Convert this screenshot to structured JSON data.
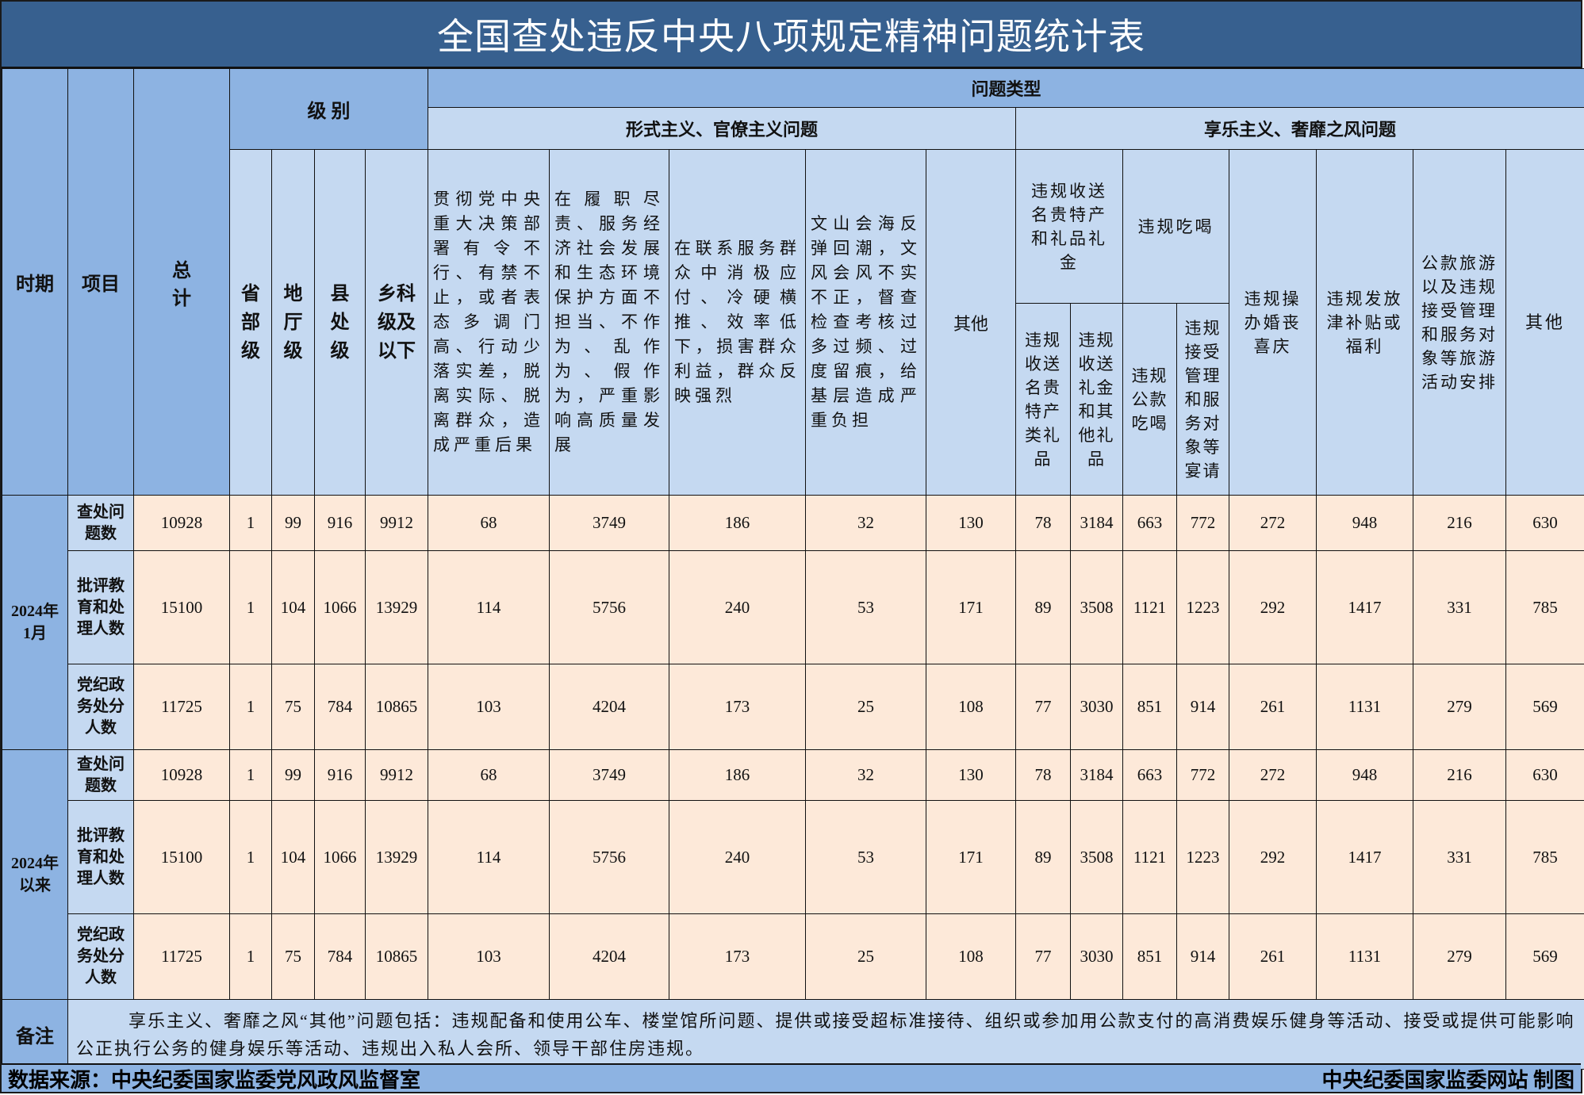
{
  "title": "全国查处违反中央八项规定精神问题统计表",
  "header": {
    "period": "时期",
    "item": "项目",
    "total": "总计",
    "level": "级 别",
    "levels": [
      "省部级",
      "地厅级",
      "县处级",
      "乡科级及以下"
    ],
    "problem_type": "问题类型",
    "formalism": "形式主义、官僚主义问题",
    "hedonism": "享乐主义、奢靡之风问题",
    "formalism_cols": [
      "贯彻党中央重大决策部署有令不行、有禁不止，或者表态多调门高、行动少落实差，脱离实际、脱离群众，造成严重后果",
      "在履职尽责、服务经济社会发展和生态环境保护方面不担当、不作为、乱作为、假作为，严重影响高质量发展",
      "在联系服务群众中消极应付、冷硬横推、效率低下，损害群众利益，群众反映强烈",
      "文山会海反弹回潮，文风会风不实不正，督查检查考核过多过频、过度留痕，给基层造成严重负担",
      "其他"
    ],
    "gifts_group": "违规收送名贵特产和礼品礼金",
    "gifts_cols": [
      "违规收送名贵特产类礼品",
      "违规收送礼金和其他礼品"
    ],
    "eating_group": "违规吃喝",
    "eating_cols": [
      "违规公款吃喝",
      "违规接受管理和服务对象等宴请"
    ],
    "other_cols": [
      "违规操办婚丧喜庆",
      "违规发放津补贴或福利",
      "公款旅游以及违规接受管理和服务对象等旅游活动安排",
      "其他"
    ]
  },
  "periods": [
    {
      "label": "2024年1月",
      "rows": [
        {
          "item": "查处问题数",
          "values": [
            "10928",
            "1",
            "99",
            "916",
            "9912",
            "68",
            "3749",
            "186",
            "32",
            "130",
            "78",
            "3184",
            "663",
            "772",
            "272",
            "948",
            "216",
            "630"
          ]
        },
        {
          "item": "批评教育和处理人数",
          "values": [
            "15100",
            "1",
            "104",
            "1066",
            "13929",
            "114",
            "5756",
            "240",
            "53",
            "171",
            "89",
            "3508",
            "1121",
            "1223",
            "292",
            "1417",
            "331",
            "785"
          ]
        },
        {
          "item": "党纪政务处分人数",
          "values": [
            "11725",
            "1",
            "75",
            "784",
            "10865",
            "103",
            "4204",
            "173",
            "25",
            "108",
            "77",
            "3030",
            "851",
            "914",
            "261",
            "1131",
            "279",
            "569"
          ]
        }
      ]
    },
    {
      "label": "2024年以来",
      "rows": [
        {
          "item": "查处问题数",
          "values": [
            "10928",
            "1",
            "99",
            "916",
            "9912",
            "68",
            "3749",
            "186",
            "32",
            "130",
            "78",
            "3184",
            "663",
            "772",
            "272",
            "948",
            "216",
            "630"
          ]
        },
        {
          "item": "批评教育和处理人数",
          "values": [
            "15100",
            "1",
            "104",
            "1066",
            "13929",
            "114",
            "5756",
            "240",
            "53",
            "171",
            "89",
            "3508",
            "1121",
            "1223",
            "292",
            "1417",
            "331",
            "785"
          ]
        },
        {
          "item": "党纪政务处分人数",
          "values": [
            "11725",
            "1",
            "75",
            "784",
            "10865",
            "103",
            "4204",
            "173",
            "25",
            "108",
            "77",
            "3030",
            "851",
            "914",
            "261",
            "1131",
            "279",
            "569"
          ]
        }
      ]
    }
  ],
  "notes": {
    "label": "备注",
    "text": "享乐主义、奢靡之风“其他”问题包括：违规配备和使用公车、楼堂馆所问题、提供或接受超标准接待、组织或参加用公款支付的高消费娱乐健身等活动、接受或提供可能影响公正执行公务的健身娱乐等活动、违规出入私人会所、领导干部住房违规。"
  },
  "footer": {
    "source": "数据来源：中央纪委国家监委党风政风监督室",
    "credit": "中央纪委国家监委网站  制图"
  },
  "colors": {
    "title_bg": "#37608f",
    "header_dark": "#8db3e2",
    "header_light": "#c5d9f1",
    "data_bg": "#fde9d9"
  }
}
